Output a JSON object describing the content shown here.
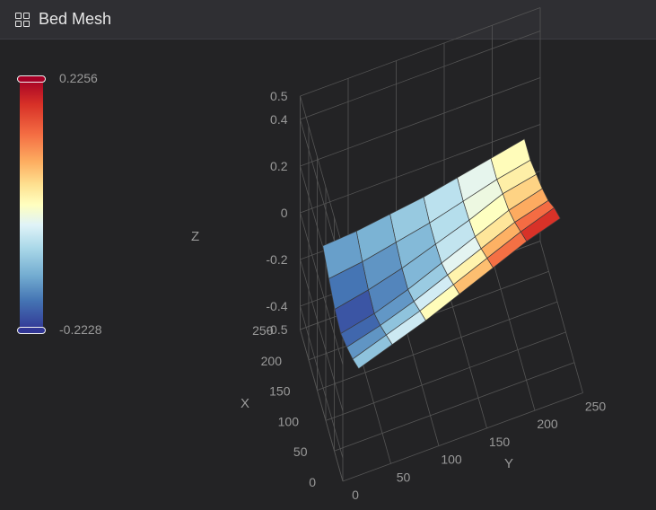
{
  "header": {
    "title": "Bed Mesh",
    "icon": "grid-icon"
  },
  "visual_map": {
    "max_label": "0.2256",
    "min_label": "-0.2228",
    "max": 0.2256,
    "min": -0.2228
  },
  "chart_data": {
    "type": "surface3d",
    "title": "",
    "axes": {
      "x": {
        "name": "X",
        "ticks": [
          "0",
          "50",
          "100",
          "150",
          "200",
          "250"
        ],
        "range": [
          0,
          250
        ]
      },
      "y": {
        "name": "Y",
        "ticks": [
          "0",
          "50",
          "100",
          "150",
          "200",
          "250"
        ],
        "range": [
          0,
          250
        ]
      },
      "z": {
        "name": "Z",
        "ticks": [
          "-0.5",
          "-0.4",
          "-0.2",
          "0",
          "0.2",
          "0.4",
          "0.5"
        ],
        "range": [
          -0.5,
          0.5
        ]
      }
    },
    "grid": true,
    "x": [
      20,
      55,
      90,
      125,
      160,
      195,
      230
    ],
    "y": [
      20,
      55,
      90,
      125,
      160,
      195,
      230
    ],
    "z": [
      [
        -0.1,
        -0.05,
        0.0,
        0.06,
        0.12,
        0.18,
        0.2256
      ],
      [
        -0.15,
        -0.1,
        -0.05,
        0.01,
        0.07,
        0.13,
        0.18
      ],
      [
        -0.19,
        -0.15,
        -0.1,
        -0.04,
        0.02,
        0.08,
        0.12
      ],
      [
        -0.2228,
        -0.19,
        -0.14,
        -0.08,
        -0.02,
        0.04,
        0.08
      ],
      [
        -0.21,
        -0.18,
        -0.14,
        -0.09,
        -0.04,
        0.02,
        0.05
      ],
      [
        -0.17,
        -0.15,
        -0.12,
        -0.09,
        -0.05,
        -0.01,
        0.02
      ],
      [
        -0.12,
        -0.11,
        -0.09,
        -0.07,
        -0.04,
        -0.01,
        0.02
      ]
    ]
  }
}
